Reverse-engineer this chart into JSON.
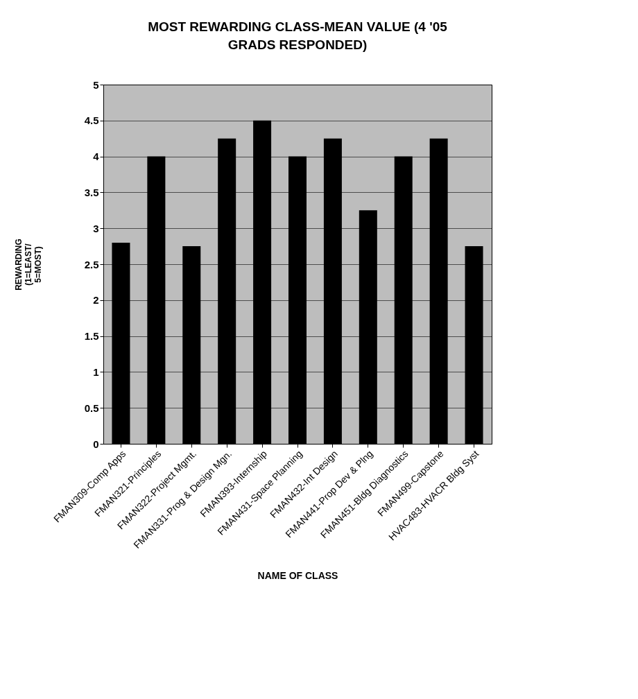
{
  "chart_data": {
    "type": "bar",
    "title": "MOST REWARDING CLASS-MEAN VALUE (4 '05 GRADS RESPONDED)",
    "xlabel": "NAME OF CLASS",
    "ylabel": "REWARDING (1=LEAST/ 5=MOST)",
    "categories": [
      "FMAN309-Comp Apps",
      "FMAN321-Principles",
      "FMAN322-Project Mgmt.",
      "FMAN331-Prog & Design Mgn.",
      "FMAN393-Internship",
      "FMAN431-Space Planning",
      "FMAN432-Int Design",
      "FMAN441-Prop Dev & Plng",
      "FMAN451-Bldg Diagnostics",
      "FMAN499-Capstone",
      "HVAC483-HVACR Bldg Syst"
    ],
    "values": [
      2.8,
      4.0,
      2.75,
      4.25,
      4.5,
      4.0,
      4.25,
      3.25,
      4.0,
      4.25,
      2.75
    ],
    "color": "#000000",
    "ylim": [
      0,
      5
    ],
    "yticks": [
      0,
      0.5,
      1,
      1.5,
      2,
      2.5,
      3,
      3.5,
      4,
      4.5,
      5
    ],
    "grid": "y"
  }
}
